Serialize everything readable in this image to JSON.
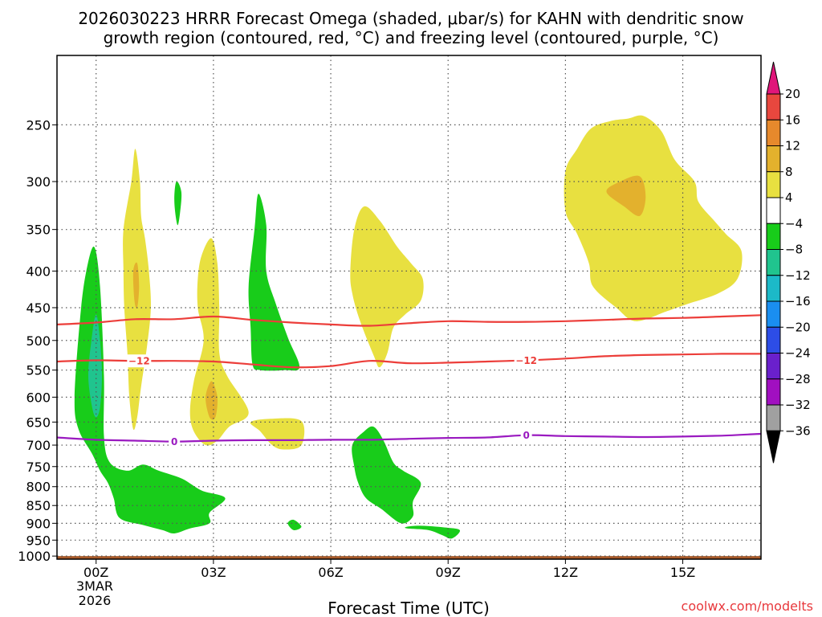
{
  "chart_data": {
    "type": "time-height-cross-section",
    "title_line1": "2026030223 HRRR Forecast Omega (shaded, μbar/s) for KAHN with dendritic snow",
    "title_line2": "growth region (contoured, red, °C) and freezing level (contoured, purple, °C)",
    "xlabel": "Forecast Time (UTC)",
    "ylabel": "",
    "credit": "coolwx.com/modelts",
    "x_ticks": [
      {
        "hour": 0,
        "label": "00Z"
      },
      {
        "hour": 3,
        "label": "03Z"
      },
      {
        "hour": 6,
        "label": "06Z"
      },
      {
        "hour": 9,
        "label": "09Z"
      },
      {
        "hour": 12,
        "label": "12Z"
      },
      {
        "hour": 15,
        "label": "15Z"
      }
    ],
    "date_label_line1": "3MAR",
    "date_label_line2": "2026",
    "xlim_hours": [
      -1.0,
      17.0
    ],
    "y_ticks": [
      250,
      300,
      350,
      400,
      450,
      500,
      550,
      600,
      650,
      700,
      750,
      800,
      850,
      900,
      950,
      1000
    ],
    "ylim_hpa": [
      200,
      1010
    ],
    "y_axis": "pressure-hPa-log-inverted",
    "grid": true,
    "colorbar": {
      "labels": [
        "20",
        "16",
        "12",
        "8",
        "4",
        "−4",
        "−8",
        "−12",
        "−16",
        "−20",
        "−24",
        "−28",
        "−32",
        "−36"
      ],
      "bins": [
        {
          "range": [
            16,
            20
          ],
          "color": "#e8473e"
        },
        {
          "range": [
            12,
            16
          ],
          "color": "#e6892c"
        },
        {
          "range": [
            8,
            12
          ],
          "color": "#e3b12d"
        },
        {
          "range": [
            4,
            8
          ],
          "color": "#e8e040"
        },
        {
          "range": [
            -4,
            4
          ],
          "color": "#ffffff"
        },
        {
          "range": [
            -8,
            -4
          ],
          "color": "#18cc1a"
        },
        {
          "range": [
            -12,
            -8
          ],
          "color": "#20c48e"
        },
        {
          "range": [
            -16,
            -12
          ],
          "color": "#1cb9c8"
        },
        {
          "range": [
            -20,
            -16
          ],
          "color": "#1a8ef0"
        },
        {
          "range": [
            -24,
            -20
          ],
          "color": "#2d4de6"
        },
        {
          "range": [
            -28,
            -24
          ],
          "color": "#6a20cc"
        },
        {
          "range": [
            -32,
            -28
          ],
          "color": "#a10fc0"
        },
        {
          "range": [
            -36,
            -32
          ],
          "color": "#a0a0a0"
        }
      ],
      "top_arrow_color": "#e0167a",
      "bottom_arrow_color": "#000000"
    },
    "contours": [
      {
        "name": "minus-12C-isotherm",
        "value": -12,
        "label": "−12",
        "color": "#ec3e3a",
        "label_positions_hours": [
          1.1,
          11.0
        ],
        "points": [
          [
            -1,
            535
          ],
          [
            0,
            533
          ],
          [
            1,
            534
          ],
          [
            2,
            534
          ],
          [
            3,
            535
          ],
          [
            4,
            540
          ],
          [
            5,
            545
          ],
          [
            6,
            543
          ],
          [
            7,
            534
          ],
          [
            8,
            538
          ],
          [
            9,
            537
          ],
          [
            10,
            535
          ],
          [
            11,
            533
          ],
          [
            12,
            530
          ],
          [
            13,
            526
          ],
          [
            14,
            524
          ],
          [
            15,
            523
          ],
          [
            16,
            522
          ],
          [
            17,
            522
          ]
        ]
      },
      {
        "name": "minus-18C-isotherm",
        "value": -18,
        "label": "",
        "color": "#ec3e3a",
        "label_positions_hours": [],
        "points": [
          [
            -1,
            475
          ],
          [
            0,
            472
          ],
          [
            1,
            467
          ],
          [
            2,
            467
          ],
          [
            3,
            463
          ],
          [
            4,
            468
          ],
          [
            5,
            472
          ],
          [
            6,
            475
          ],
          [
            7,
            477
          ],
          [
            8,
            473
          ],
          [
            9,
            470
          ],
          [
            10,
            471
          ],
          [
            11,
            471
          ],
          [
            12,
            470
          ],
          [
            13,
            468
          ],
          [
            14,
            466
          ],
          [
            15,
            465
          ],
          [
            16,
            463
          ],
          [
            17,
            461
          ]
        ]
      },
      {
        "name": "freezing-level",
        "value": 0,
        "label": "0",
        "color": "#9a1ac0",
        "label_positions_hours": [
          2.0,
          11.0
        ],
        "points": [
          [
            -1,
            683
          ],
          [
            0,
            688
          ],
          [
            1,
            690
          ],
          [
            2,
            692
          ],
          [
            3,
            690
          ],
          [
            4,
            689
          ],
          [
            5,
            689
          ],
          [
            6,
            688
          ],
          [
            7,
            688
          ],
          [
            8,
            686
          ],
          [
            9,
            684
          ],
          [
            10,
            683
          ],
          [
            11,
            678
          ],
          [
            12,
            680
          ],
          [
            13,
            681
          ],
          [
            14,
            682
          ],
          [
            15,
            681
          ],
          [
            16,
            679
          ],
          [
            17,
            675
          ]
        ]
      }
    ],
    "omega_regions": [
      {
        "name": "ascent-low-level-left",
        "level": "-8..-4",
        "color": "#18cc1a",
        "points": [
          [
            -0.55,
            600
          ],
          [
            -0.4,
            460
          ],
          [
            -0.25,
            400
          ],
          [
            -0.05,
            370
          ],
          [
            0.1,
            420
          ],
          [
            0.2,
            560
          ],
          [
            0.2,
            680
          ],
          [
            0.35,
            740
          ],
          [
            0.8,
            760
          ],
          [
            1.2,
            745
          ],
          [
            1.6,
            760
          ],
          [
            2.2,
            780
          ],
          [
            2.7,
            810
          ],
          [
            3.3,
            830
          ],
          [
            2.9,
            870
          ],
          [
            2.9,
            900
          ],
          [
            2.4,
            915
          ],
          [
            2.0,
            930
          ],
          [
            1.7,
            920
          ],
          [
            1.2,
            905
          ],
          [
            0.6,
            885
          ],
          [
            0.45,
            830
          ],
          [
            0.3,
            790
          ],
          [
            0.1,
            760
          ],
          [
            -0.1,
            720
          ],
          [
            -0.45,
            665
          ]
        ]
      },
      {
        "name": "ascent-core-left",
        "level": "-12..-8",
        "color": "#20c48e",
        "points": [
          [
            -0.2,
            560
          ],
          [
            -0.12,
            500
          ],
          [
            0.0,
            460
          ],
          [
            0.1,
            500
          ],
          [
            0.15,
            560
          ],
          [
            0.1,
            620
          ],
          [
            0.0,
            640
          ],
          [
            -0.1,
            620
          ]
        ]
      },
      {
        "name": "ascent-column-03z",
        "level": "-8..-4",
        "color": "#18cc1a",
        "points": [
          [
            3.9,
            420
          ],
          [
            4.05,
            350
          ],
          [
            4.15,
            312
          ],
          [
            4.35,
            345
          ],
          [
            4.35,
            400
          ],
          [
            4.6,
            445
          ],
          [
            4.9,
            495
          ],
          [
            5.2,
            545
          ],
          [
            4.8,
            550
          ],
          [
            4.2,
            550
          ],
          [
            4.0,
            540
          ],
          [
            3.95,
            480
          ]
        ]
      },
      {
        "name": "ascent-small-02z",
        "level": "-8..-4",
        "color": "#18cc1a",
        "points": [
          [
            2.0,
            320
          ],
          [
            2.05,
            300
          ],
          [
            2.18,
            310
          ],
          [
            2.15,
            330
          ],
          [
            2.08,
            345
          ]
        ]
      },
      {
        "name": "ascent-small-05z",
        "level": "-8..-4",
        "color": "#18cc1a",
        "points": [
          [
            4.9,
            900
          ],
          [
            5.05,
            890
          ],
          [
            5.25,
            910
          ],
          [
            5.05,
            920
          ]
        ]
      },
      {
        "name": "ascent-07z-low",
        "level": "-8..-4",
        "color": "#18cc1a",
        "points": [
          [
            6.55,
            700
          ],
          [
            6.85,
            670
          ],
          [
            7.1,
            660
          ],
          [
            7.35,
            690
          ],
          [
            7.6,
            740
          ],
          [
            7.85,
            760
          ],
          [
            8.3,
            790
          ],
          [
            8.1,
            840
          ],
          [
            8.1,
            880
          ],
          [
            7.8,
            900
          ],
          [
            7.3,
            860
          ],
          [
            6.9,
            830
          ],
          [
            6.7,
            790
          ],
          [
            6.6,
            750
          ]
        ]
      },
      {
        "name": "ascent-09z-low",
        "level": "-8..-4",
        "color": "#18cc1a",
        "points": [
          [
            7.95,
            910
          ],
          [
            8.3,
            907
          ],
          [
            8.9,
            912
          ],
          [
            9.3,
            920
          ],
          [
            9.1,
            945
          ],
          [
            8.85,
            935
          ],
          [
            8.5,
            920
          ],
          [
            7.95,
            915
          ]
        ]
      },
      {
        "name": "descent-01z-column",
        "level": "4..8",
        "color": "#e8e040",
        "points": [
          [
            0.7,
            350
          ],
          [
            0.9,
            300
          ],
          [
            1.0,
            270
          ],
          [
            1.12,
            300
          ],
          [
            1.15,
            335
          ],
          [
            1.25,
            360
          ],
          [
            1.35,
            400
          ],
          [
            1.4,
            450
          ],
          [
            1.3,
            510
          ],
          [
            1.15,
            580
          ],
          [
            1.05,
            640
          ],
          [
            0.95,
            665
          ],
          [
            0.85,
            600
          ],
          [
            0.8,
            520
          ],
          [
            0.72,
            450
          ],
          [
            0.7,
            400
          ]
        ]
      },
      {
        "name": "descent-01z-core",
        "level": "8..12",
        "color": "#e3b12d",
        "points": [
          [
            0.95,
            400
          ],
          [
            1.05,
            390
          ],
          [
            1.1,
            420
          ],
          [
            1.05,
            450
          ],
          [
            0.98,
            440
          ]
        ]
      },
      {
        "name": "descent-03z-column",
        "level": "4..8",
        "color": "#e8e040",
        "points": [
          [
            2.6,
            410
          ],
          [
            2.7,
            380
          ],
          [
            2.95,
            360
          ],
          [
            3.1,
            390
          ],
          [
            3.15,
            450
          ],
          [
            3.15,
            520
          ],
          [
            3.35,
            560
          ],
          [
            3.9,
            630
          ],
          [
            3.4,
            660
          ],
          [
            3.1,
            690
          ],
          [
            2.8,
            700
          ],
          [
            2.5,
            670
          ],
          [
            2.4,
            630
          ],
          [
            2.5,
            570
          ],
          [
            2.75,
            500
          ],
          [
            2.6,
            450
          ]
        ]
      },
      {
        "name": "descent-03z-core",
        "level": "8..12",
        "color": "#e3b12d",
        "points": [
          [
            2.8,
            600
          ],
          [
            2.95,
            570
          ],
          [
            3.1,
            600
          ],
          [
            3.05,
            640
          ],
          [
            2.9,
            640
          ]
        ]
      },
      {
        "name": "descent-05z-small",
        "level": "4..8",
        "color": "#e8e040",
        "points": [
          [
            3.95,
            650
          ],
          [
            4.5,
            643
          ],
          [
            5.25,
            648
          ],
          [
            5.25,
            700
          ],
          [
            4.8,
            710
          ],
          [
            4.5,
            700
          ],
          [
            4.2,
            670
          ]
        ]
      },
      {
        "name": "descent-07z-upper",
        "level": "4..8",
        "color": "#e8e040",
        "points": [
          [
            6.5,
            400
          ],
          [
            6.6,
            350
          ],
          [
            6.85,
            325
          ],
          [
            7.25,
            340
          ],
          [
            7.7,
            370
          ],
          [
            8.05,
            390
          ],
          [
            8.35,
            410
          ],
          [
            8.3,
            440
          ],
          [
            7.9,
            460
          ],
          [
            7.6,
            480
          ],
          [
            7.45,
            520
          ],
          [
            7.25,
            545
          ],
          [
            7.1,
            525
          ],
          [
            6.75,
            470
          ],
          [
            6.55,
            430
          ]
        ]
      },
      {
        "name": "descent-upper-right",
        "level": "4..8",
        "color": "#e8e040",
        "points": [
          [
            12.0,
            290
          ],
          [
            12.3,
            270
          ],
          [
            12.65,
            253
          ],
          [
            13.15,
            247
          ],
          [
            13.6,
            245
          ],
          [
            14.0,
            243
          ],
          [
            14.45,
            255
          ],
          [
            14.8,
            280
          ],
          [
            15.3,
            300
          ],
          [
            15.4,
            320
          ],
          [
            15.8,
            340
          ],
          [
            16.1,
            355
          ],
          [
            16.5,
            375
          ],
          [
            16.4,
            410
          ],
          [
            15.9,
            430
          ],
          [
            15.1,
            445
          ],
          [
            14.6,
            455
          ],
          [
            13.8,
            470
          ],
          [
            13.3,
            450
          ],
          [
            12.7,
            420
          ],
          [
            12.6,
            390
          ],
          [
            12.3,
            355
          ],
          [
            12.0,
            330
          ]
        ]
      },
      {
        "name": "descent-upper-right-core",
        "level": "8..12",
        "color": "#e3b12d",
        "points": [
          [
            13.05,
            310
          ],
          [
            13.4,
            300
          ],
          [
            13.9,
            295
          ],
          [
            14.05,
            315
          ],
          [
            13.9,
            335
          ],
          [
            13.5,
            325
          ]
        ]
      }
    ],
    "terrain": {
      "name": "below-ground",
      "color": "#a85a2a",
      "top_hpa": 1000
    }
  }
}
